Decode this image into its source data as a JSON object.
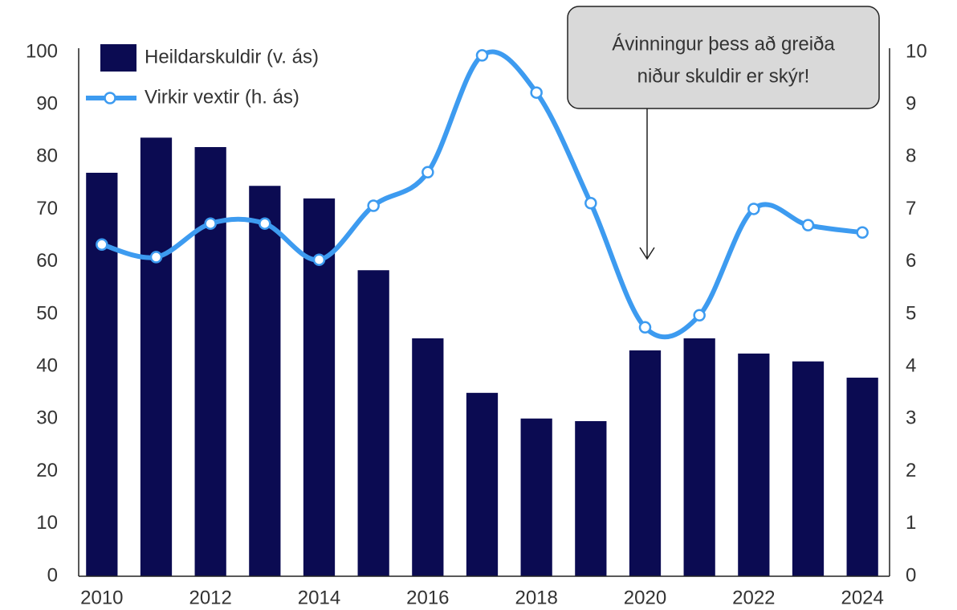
{
  "chart_data": {
    "type": "bar_line",
    "categories": [
      "2010",
      null,
      "2012",
      null,
      "2014",
      null,
      "2016",
      null,
      "2018",
      null,
      "2020",
      null,
      "2022",
      null,
      "2024"
    ],
    "series": [
      {
        "name": "Heildarskuldir (v. ás)",
        "type": "bar",
        "color": "#0b0b52",
        "axis": "y",
        "values": [
          77.0,
          83.7,
          81.9,
          74.5,
          72.1,
          58.4,
          45.4,
          35.0,
          30.1,
          29.6,
          43.1,
          45.4,
          42.5,
          41.0,
          37.9
        ]
      },
      {
        "name": "Virkir vextir (h. ás)",
        "type": "line",
        "color": "#3d9bf0",
        "axis": "y2",
        "values": [
          6.33,
          6.09,
          6.73,
          6.73,
          6.04,
          7.07,
          7.71,
          9.94,
          9.23,
          7.12,
          4.75,
          4.98,
          7.01,
          6.7,
          6.56
        ]
      }
    ],
    "ylim": [
      0,
      100
    ],
    "yticks": [
      0,
      10,
      20,
      30,
      40,
      50,
      60,
      70,
      80,
      90,
      100
    ],
    "y2lim": [
      0,
      10
    ],
    "y2ticks": [
      0,
      1,
      2,
      3,
      4,
      5,
      6,
      7,
      8,
      9,
      10
    ],
    "annotation": [
      "Ávinningur þess að greiða",
      "niður skuldir er skýr!"
    ],
    "legend": "top-left",
    "grid": false
  }
}
